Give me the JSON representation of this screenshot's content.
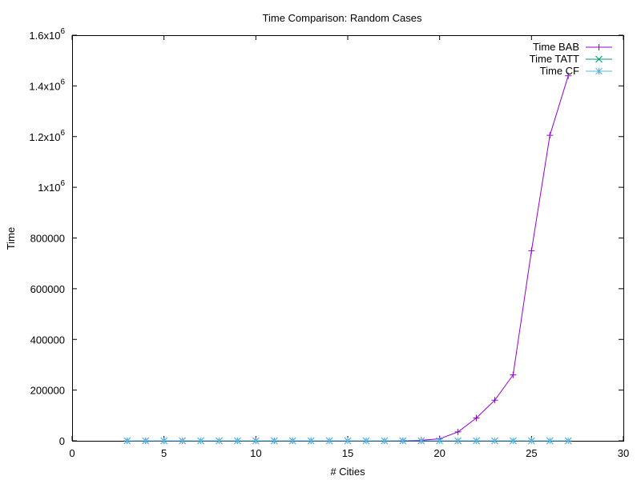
{
  "chart_data": {
    "type": "line",
    "title": "Time Comparison: Random Cases",
    "xlabel": "# Cities",
    "ylabel": "Time",
    "xlim": [
      0,
      30
    ],
    "ylim": [
      0,
      1600000
    ],
    "grid": false,
    "legend_position": "top-right",
    "x_ticks": [
      {
        "value": 0,
        "label": "0"
      },
      {
        "value": 5,
        "label": "5"
      },
      {
        "value": 10,
        "label": "10"
      },
      {
        "value": 15,
        "label": "15"
      },
      {
        "value": 20,
        "label": "20"
      },
      {
        "value": 25,
        "label": "25"
      },
      {
        "value": 30,
        "label": "30"
      }
    ],
    "y_ticks": [
      {
        "value": 0,
        "label": "0"
      },
      {
        "value": 200000,
        "label": "200000"
      },
      {
        "value": 400000,
        "label": "400000"
      },
      {
        "value": 600000,
        "label": "600000"
      },
      {
        "value": 800000,
        "label": "800000"
      },
      {
        "value": 1000000,
        "base": "1x10",
        "exp": "6"
      },
      {
        "value": 1200000,
        "base": "1.2x10",
        "exp": "6"
      },
      {
        "value": 1400000,
        "base": "1.4x10",
        "exp": "6"
      },
      {
        "value": 1600000,
        "base": "1.6x10",
        "exp": "6"
      }
    ],
    "series": [
      {
        "name": "Time BAB",
        "color": "#9400d3",
        "marker": "plus",
        "x": [
          3,
          4,
          5,
          6,
          7,
          8,
          9,
          10,
          11,
          12,
          13,
          14,
          15,
          16,
          17,
          18,
          19,
          20,
          21,
          22,
          23,
          24,
          25,
          26,
          27
        ],
        "y": [
          0,
          0,
          0,
          0,
          0,
          0,
          0,
          0,
          0,
          0,
          0,
          0,
          0,
          0,
          0,
          500,
          2000,
          8000,
          35000,
          90000,
          160000,
          260000,
          750000,
          1205000,
          1440000
        ]
      },
      {
        "name": "Time TATT",
        "color": "#009e73",
        "marker": "cross",
        "x": [
          3,
          4,
          5,
          6,
          7,
          8,
          9,
          10,
          11,
          12,
          13,
          14,
          15,
          16,
          17,
          18,
          19,
          20,
          21,
          22,
          23,
          24,
          25,
          26,
          27
        ],
        "y": [
          0,
          0,
          0,
          0,
          0,
          0,
          0,
          0,
          0,
          0,
          0,
          0,
          0,
          0,
          0,
          0,
          0,
          0,
          0,
          0,
          0,
          0,
          0,
          0,
          0
        ]
      },
      {
        "name": "Time CF",
        "color": "#56b4e9",
        "marker": "star",
        "x": [
          3,
          4,
          5,
          6,
          7,
          8,
          9,
          10,
          11,
          12,
          13,
          14,
          15,
          16,
          17,
          18,
          19,
          20,
          21,
          22,
          23,
          24,
          25,
          26,
          27
        ],
        "y": [
          0,
          0,
          0,
          0,
          0,
          0,
          0,
          0,
          0,
          0,
          0,
          0,
          0,
          0,
          0,
          0,
          0,
          0,
          0,
          0,
          0,
          0,
          0,
          0,
          0
        ]
      }
    ]
  }
}
